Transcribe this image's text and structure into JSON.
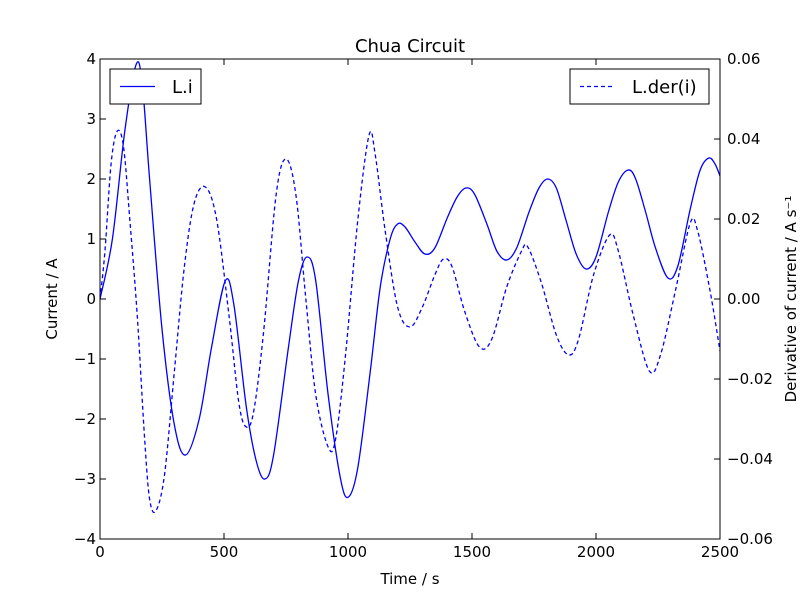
{
  "chart_data": {
    "type": "line",
    "title": "Chua Circuit",
    "xlabel": "Time / s",
    "ylabel_left": "Current / A",
    "ylabel_right": "Derivative of current / A s⁻¹",
    "xlim": [
      0,
      2500
    ],
    "ylim_left": [
      -4,
      4
    ],
    "ylim_right": [
      -0.06,
      0.06
    ],
    "x_ticks": [
      0,
      500,
      1000,
      1500,
      2000,
      2500
    ],
    "x_tick_labels": [
      "0",
      "500",
      "1000",
      "1500",
      "2000",
      "2500"
    ],
    "y_left_ticks": [
      -4,
      -3,
      -2,
      -1,
      0,
      1,
      2,
      3,
      4
    ],
    "y_left_tick_labels": [
      "−4",
      "−3",
      "−2",
      "−1",
      "0",
      "1",
      "2",
      "3",
      "4"
    ],
    "y_right_ticks": [
      -0.06,
      -0.04,
      -0.02,
      0.0,
      0.02,
      0.04,
      0.06
    ],
    "y_right_tick_labels": [
      "−0.06",
      "−0.04",
      "−0.02",
      "0.00",
      "0.02",
      "0.04",
      "0.06"
    ],
    "grid": false,
    "series": [
      {
        "name": "L.i",
        "axis": "left",
        "style": "solid",
        "color": "#0000ff",
        "legend_position": "top-left",
        "points": [
          [
            0,
            0.0
          ],
          [
            50,
            1.0
          ],
          [
            100,
            2.8
          ],
          [
            145,
            3.9
          ],
          [
            170,
            3.6
          ],
          [
            200,
            2.0
          ],
          [
            250,
            -0.5
          ],
          [
            300,
            -2.1
          ],
          [
            345,
            -2.6
          ],
          [
            400,
            -2.0
          ],
          [
            450,
            -0.8
          ],
          [
            505,
            0.3
          ],
          [
            540,
            -0.1
          ],
          [
            590,
            -1.8
          ],
          [
            630,
            -2.7
          ],
          [
            665,
            -3.0
          ],
          [
            700,
            -2.6
          ],
          [
            760,
            -0.8
          ],
          [
            800,
            0.3
          ],
          [
            835,
            0.7
          ],
          [
            870,
            0.3
          ],
          [
            920,
            -1.6
          ],
          [
            970,
            -3.0
          ],
          [
            1002,
            -3.3
          ],
          [
            1040,
            -2.8
          ],
          [
            1090,
            -1.2
          ],
          [
            1130,
            0.2
          ],
          [
            1170,
            1.0
          ],
          [
            1200,
            1.25
          ],
          [
            1230,
            1.2
          ],
          [
            1270,
            0.95
          ],
          [
            1310,
            0.75
          ],
          [
            1350,
            0.85
          ],
          [
            1400,
            1.35
          ],
          [
            1440,
            1.7
          ],
          [
            1475,
            1.85
          ],
          [
            1510,
            1.75
          ],
          [
            1560,
            1.25
          ],
          [
            1600,
            0.8
          ],
          [
            1640,
            0.65
          ],
          [
            1680,
            0.85
          ],
          [
            1730,
            1.45
          ],
          [
            1770,
            1.85
          ],
          [
            1805,
            2.0
          ],
          [
            1840,
            1.85
          ],
          [
            1880,
            1.3
          ],
          [
            1920,
            0.75
          ],
          [
            1960,
            0.5
          ],
          [
            2000,
            0.7
          ],
          [
            2050,
            1.45
          ],
          [
            2090,
            1.95
          ],
          [
            2130,
            2.15
          ],
          [
            2160,
            2.0
          ],
          [
            2200,
            1.45
          ],
          [
            2240,
            0.85
          ],
          [
            2290,
            0.35
          ],
          [
            2330,
            0.55
          ],
          [
            2380,
            1.5
          ],
          [
            2420,
            2.15
          ],
          [
            2455,
            2.35
          ],
          [
            2480,
            2.25
          ],
          [
            2500,
            2.05
          ]
        ]
      },
      {
        "name": "L.der(i)",
        "axis": "right",
        "style": "dashed",
        "color": "#0000ff",
        "legend_position": "top-right",
        "points": [
          [
            0,
            0.0
          ],
          [
            20,
            0.012
          ],
          [
            45,
            0.034
          ],
          [
            70,
            0.042
          ],
          [
            95,
            0.038
          ],
          [
            120,
            0.02
          ],
          [
            150,
            -0.004
          ],
          [
            180,
            -0.035
          ],
          [
            200,
            -0.05
          ],
          [
            225,
            -0.053
          ],
          [
            260,
            -0.044
          ],
          [
            300,
            -0.018
          ],
          [
            340,
            0.008
          ],
          [
            380,
            0.024
          ],
          [
            425,
            0.028
          ],
          [
            470,
            0.02
          ],
          [
            520,
            -0.004
          ],
          [
            560,
            -0.026
          ],
          [
            590,
            -0.032
          ],
          [
            620,
            -0.028
          ],
          [
            660,
            -0.008
          ],
          [
            710,
            0.026
          ],
          [
            750,
            0.035
          ],
          [
            790,
            0.026
          ],
          [
            830,
            0.0
          ],
          [
            870,
            -0.024
          ],
          [
            920,
            -0.037
          ],
          [
            950,
            -0.035
          ],
          [
            990,
            -0.014
          ],
          [
            1040,
            0.02
          ],
          [
            1085,
            0.041
          ],
          [
            1110,
            0.036
          ],
          [
            1150,
            0.017
          ],
          [
            1200,
            -0.002
          ],
          [
            1250,
            -0.007
          ],
          [
            1300,
            -0.002
          ],
          [
            1350,
            0.006
          ],
          [
            1385,
            0.01
          ],
          [
            1420,
            0.008
          ],
          [
            1470,
            -0.003
          ],
          [
            1530,
            -0.012
          ],
          [
            1580,
            -0.01
          ],
          [
            1640,
            0.003
          ],
          [
            1700,
            0.012
          ],
          [
            1725,
            0.013
          ],
          [
            1780,
            0.004
          ],
          [
            1840,
            -0.009
          ],
          [
            1890,
            -0.014
          ],
          [
            1930,
            -0.01
          ],
          [
            1990,
            0.006
          ],
          [
            2055,
            0.016
          ],
          [
            2090,
            0.012
          ],
          [
            2150,
            -0.004
          ],
          [
            2215,
            -0.018
          ],
          [
            2260,
            -0.014
          ],
          [
            2320,
            0.002
          ],
          [
            2380,
            0.019
          ],
          [
            2410,
            0.017
          ],
          [
            2460,
            0.002
          ],
          [
            2500,
            -0.013
          ]
        ]
      }
    ]
  }
}
